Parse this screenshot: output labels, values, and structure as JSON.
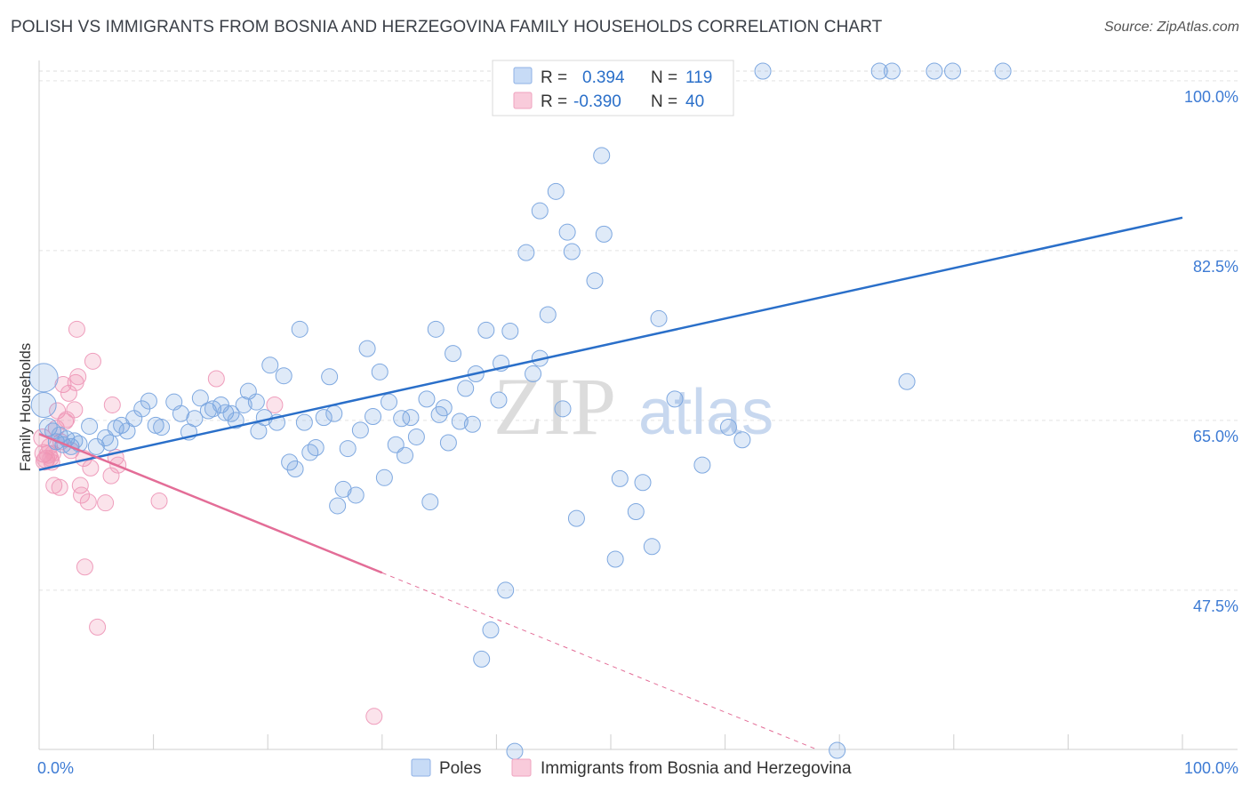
{
  "title": "POLISH VS IMMIGRANTS FROM BOSNIA AND HERZEGOVINA FAMILY HOUSEHOLDS CORRELATION CHART",
  "source": "Source: ZipAtlas.com",
  "watermark": {
    "zip": "ZIP",
    "atlas": "atlas"
  },
  "legend_top": [
    {
      "r_label": "R =",
      "r_value": "0.394",
      "n_label": "N =",
      "n_value": "119",
      "color": "#6fa0e0"
    },
    {
      "r_label": "R =",
      "r_value": "-0.390",
      "n_label": "N =",
      "n_value": "40",
      "color": "#f08fb0"
    }
  ],
  "chart_data": {
    "type": "scatter",
    "title": "POLISH VS IMMIGRANTS FROM BOSNIA AND HERZEGOVINA FAMILY HOUSEHOLDS CORRELATION CHART",
    "xlabel": "",
    "ylabel": "Family Households",
    "xlim": [
      0,
      100
    ],
    "ylim": [
      29.5,
      101.5
    ],
    "x_tick_labels": [
      "0.0%",
      "100.0%"
    ],
    "y_ticks": [
      47.5,
      65.0,
      82.5,
      100.0
    ],
    "y_tick_labels": [
      "47.5%",
      "65.0%",
      "82.5%",
      "100.0%"
    ],
    "grid": true,
    "legend_position": "bottom",
    "series": [
      {
        "name": "Poles",
        "color": "#6fa0e0",
        "line_color": "#2a6fc9",
        "trend": {
          "x": [
            0,
            100
          ],
          "y": [
            59.9,
            85.9
          ]
        },
        "points": [
          [
            0.4,
            69.4,
            16
          ],
          [
            0.4,
            66.6,
            14
          ],
          [
            0.8,
            64.3,
            10
          ],
          [
            1.2,
            63.9,
            9
          ],
          [
            1.5,
            62.8,
            9
          ],
          [
            1.8,
            63.5,
            9
          ],
          [
            2.1,
            62.5,
            9
          ],
          [
            2.4,
            63.1,
            9
          ],
          [
            2.8,
            62.3,
            9
          ],
          [
            3.1,
            62.9,
            9
          ],
          [
            3.5,
            62.6,
            9
          ],
          [
            4.4,
            64.4,
            9
          ],
          [
            5.0,
            62.3,
            9
          ],
          [
            5.8,
            63.2,
            9
          ],
          [
            6.2,
            62.7,
            9
          ],
          [
            6.7,
            64.2,
            9
          ],
          [
            7.2,
            64.5,
            9
          ],
          [
            7.7,
            63.9,
            9
          ],
          [
            8.3,
            65.2,
            9
          ],
          [
            9.0,
            66.2,
            9
          ],
          [
            9.6,
            67.0,
            9
          ],
          [
            10.2,
            64.5,
            9
          ],
          [
            10.7,
            64.3,
            9
          ],
          [
            11.8,
            66.9,
            9
          ],
          [
            12.4,
            65.7,
            9
          ],
          [
            13.1,
            63.8,
            9
          ],
          [
            13.6,
            65.2,
            9
          ],
          [
            14.1,
            67.3,
            9
          ],
          [
            14.8,
            66.0,
            9
          ],
          [
            15.2,
            66.2,
            9
          ],
          [
            15.9,
            66.6,
            9
          ],
          [
            16.3,
            65.8,
            9
          ],
          [
            16.8,
            65.7,
            9
          ],
          [
            17.2,
            65.0,
            9
          ],
          [
            17.9,
            66.6,
            9
          ],
          [
            18.3,
            68.0,
            9
          ],
          [
            19.2,
            63.9,
            9
          ],
          [
            19.0,
            66.9,
            9
          ],
          [
            19.7,
            65.3,
            9
          ],
          [
            20.2,
            70.7,
            9
          ],
          [
            20.8,
            64.8,
            9
          ],
          [
            21.4,
            69.6,
            9
          ],
          [
            21.9,
            60.7,
            9
          ],
          [
            22.4,
            60.0,
            9
          ],
          [
            22.8,
            74.4,
            9
          ],
          [
            23.2,
            64.8,
            9
          ],
          [
            23.7,
            61.7,
            9
          ],
          [
            24.2,
            62.2,
            9
          ],
          [
            24.9,
            65.3,
            9
          ],
          [
            25.4,
            69.5,
            9
          ],
          [
            25.8,
            65.7,
            9
          ],
          [
            26.1,
            56.2,
            9
          ],
          [
            26.6,
            57.9,
            9
          ],
          [
            27.0,
            62.1,
            9
          ],
          [
            27.7,
            57.3,
            9
          ],
          [
            28.1,
            64.0,
            9
          ],
          [
            28.7,
            72.4,
            9
          ],
          [
            29.2,
            65.4,
            9
          ],
          [
            29.8,
            70.0,
            9
          ],
          [
            30.2,
            59.1,
            9
          ],
          [
            30.6,
            66.9,
            9
          ],
          [
            31.2,
            62.5,
            9
          ],
          [
            31.7,
            65.2,
            9
          ],
          [
            32.0,
            61.4,
            9
          ],
          [
            32.5,
            65.3,
            9
          ],
          [
            33.0,
            63.3,
            9
          ],
          [
            33.9,
            67.2,
            9
          ],
          [
            34.2,
            56.6,
            9
          ],
          [
            34.7,
            74.4,
            9
          ],
          [
            35.0,
            65.6,
            9
          ],
          [
            35.4,
            66.3,
            9
          ],
          [
            35.8,
            62.7,
            9
          ],
          [
            36.2,
            71.9,
            9
          ],
          [
            36.8,
            64.9,
            9
          ],
          [
            37.3,
            68.3,
            9
          ],
          [
            37.9,
            64.6,
            9
          ],
          [
            38.2,
            69.8,
            9
          ],
          [
            38.7,
            40.4,
            9
          ],
          [
            39.1,
            74.3,
            9
          ],
          [
            39.5,
            43.4,
            9
          ],
          [
            40.2,
            67.1,
            9
          ],
          [
            40.4,
            70.9,
            9
          ],
          [
            40.8,
            47.5,
            9
          ],
          [
            41.2,
            74.2,
            9
          ],
          [
            41.6,
            30.9,
            9
          ],
          [
            42.6,
            82.3,
            9
          ],
          [
            43.2,
            69.8,
            9
          ],
          [
            43.8,
            71.4,
            9
          ],
          [
            43.8,
            86.6,
            9
          ],
          [
            44.5,
            75.9,
            9
          ],
          [
            45.2,
            88.6,
            9
          ],
          [
            45.8,
            66.2,
            9
          ],
          [
            46.2,
            84.4,
            9
          ],
          [
            46.6,
            82.4,
            9
          ],
          [
            47.0,
            54.9,
            9
          ],
          [
            48.6,
            79.4,
            9
          ],
          [
            48.6,
            101.0,
            9
          ],
          [
            49.2,
            92.3,
            9
          ],
          [
            49.4,
            84.2,
            9
          ],
          [
            50.4,
            50.7,
            9
          ],
          [
            50.8,
            59.0,
            9
          ],
          [
            52.2,
            55.6,
            9
          ],
          [
            52.8,
            58.6,
            9
          ],
          [
            53.6,
            52.0,
            9
          ],
          [
            54.0,
            101.0,
            9
          ],
          [
            54.2,
            75.5,
            9
          ],
          [
            55.6,
            67.2,
            9
          ],
          [
            58.0,
            60.4,
            9
          ],
          [
            60.3,
            64.3,
            9
          ],
          [
            61.5,
            63.0,
            9
          ],
          [
            63.3,
            101.0,
            9
          ],
          [
            69.8,
            31.0,
            9
          ],
          [
            73.5,
            101.0,
            9
          ],
          [
            74.6,
            101.0,
            9
          ],
          [
            75.9,
            69.0,
            9
          ],
          [
            78.3,
            101.0,
            9
          ],
          [
            79.9,
            101.0,
            9
          ],
          [
            84.3,
            101.0,
            9
          ]
        ]
      },
      {
        "name": "Immigrants from Bosnia and Herzegovina",
        "color": "#f08fb0",
        "line_color": "#e36d97",
        "trend": {
          "x": [
            0,
            30
          ],
          "y": [
            63.6,
            49.3
          ]
        },
        "trend_dashed": {
          "x": [
            30,
            68
          ],
          "y": [
            49.3,
            31.1
          ]
        },
        "points": [
          [
            0.3,
            63.2,
            10
          ],
          [
            0.4,
            61.6,
            10
          ],
          [
            0.5,
            60.8,
            10
          ],
          [
            0.6,
            61.0,
            10
          ],
          [
            0.8,
            61.5,
            10
          ],
          [
            0.9,
            62.3,
            9
          ],
          [
            1.0,
            61.1,
            9
          ],
          [
            1.1,
            60.7,
            9
          ],
          [
            1.2,
            61.6,
            9
          ],
          [
            1.3,
            58.3,
            9
          ],
          [
            1.5,
            64.2,
            9
          ],
          [
            1.6,
            66.0,
            9
          ],
          [
            1.8,
            58.1,
            9
          ],
          [
            1.9,
            62.8,
            9
          ],
          [
            2.1,
            68.7,
            9
          ],
          [
            2.3,
            64.9,
            9
          ],
          [
            2.4,
            65.1,
            9
          ],
          [
            2.6,
            67.8,
            9
          ],
          [
            2.8,
            61.9,
            9
          ],
          [
            3.1,
            66.1,
            9
          ],
          [
            3.2,
            68.9,
            9
          ],
          [
            3.4,
            69.5,
            9
          ],
          [
            3.3,
            74.4,
            9
          ],
          [
            3.6,
            58.3,
            9
          ],
          [
            3.7,
            57.3,
            9
          ],
          [
            3.9,
            61.1,
            9
          ],
          [
            4.0,
            49.9,
            9
          ],
          [
            4.3,
            56.6,
            9
          ],
          [
            4.5,
            60.1,
            9
          ],
          [
            4.7,
            71.1,
            9
          ],
          [
            5.1,
            43.7,
            9
          ],
          [
            5.8,
            56.5,
            9
          ],
          [
            6.3,
            59.3,
            9
          ],
          [
            6.4,
            66.6,
            9
          ],
          [
            6.7,
            61.2,
            9
          ],
          [
            6.9,
            60.4,
            9
          ],
          [
            10.5,
            56.7,
            9
          ],
          [
            15.5,
            69.3,
            9
          ],
          [
            20.6,
            66.6,
            9
          ],
          [
            29.3,
            34.5,
            9
          ]
        ]
      }
    ]
  }
}
